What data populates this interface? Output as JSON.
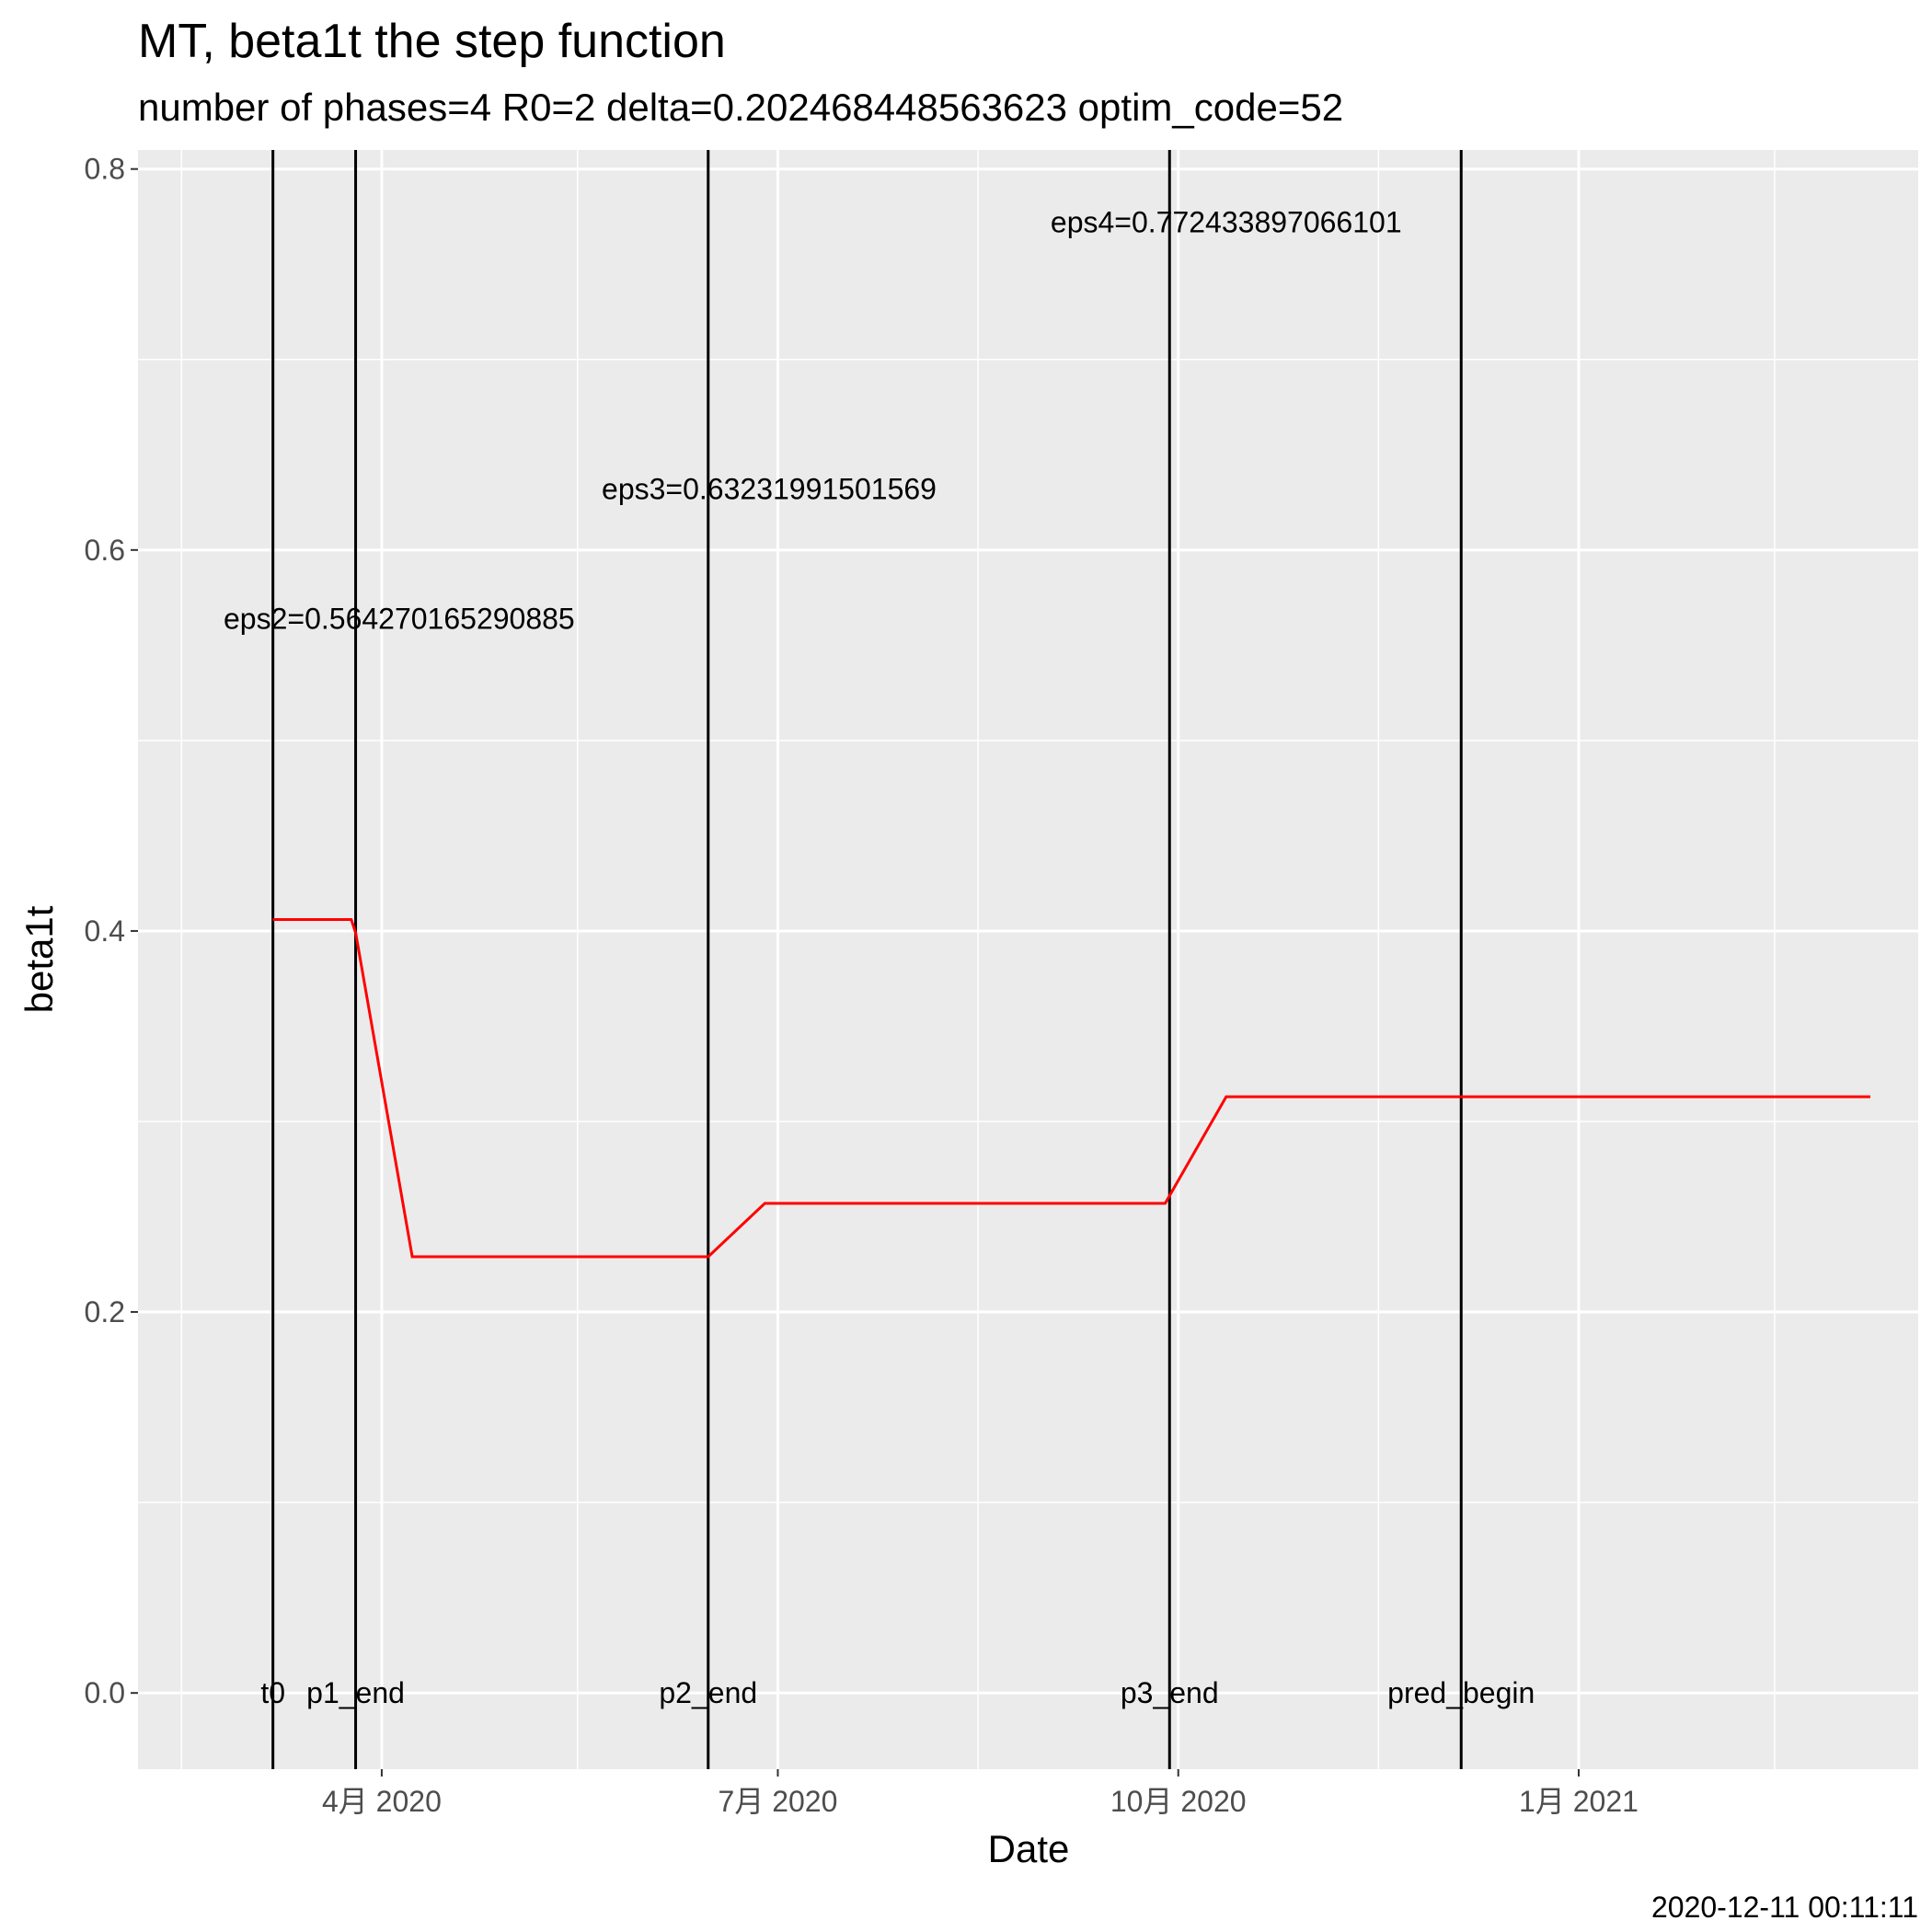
{
  "chart_data": {
    "type": "line",
    "title": "MT, beta1t the step function",
    "subtitle": "number of phases=4   R0=2   delta=0.202468448563623   optim_code=52",
    "xlabel": "Date",
    "ylabel": "beta1t",
    "caption": "2020-12-11 00:11:11",
    "xlim": [
      "2020-02-05",
      "2021-03-20"
    ],
    "ylim": [
      -0.04,
      0.81
    ],
    "x_ticks": [
      {
        "date": "2020-04-01",
        "label": "4月 2020"
      },
      {
        "date": "2020-07-01",
        "label": "7月 2020"
      },
      {
        "date": "2020-10-01",
        "label": "10月 2020"
      },
      {
        "date": "2021-01-01",
        "label": "1月 2021"
      }
    ],
    "x_minor_ticks": [
      "2020-02-15",
      "2020-05-16",
      "2020-08-16",
      "2020-11-16",
      "2021-02-15"
    ],
    "y_ticks": [
      0.0,
      0.2,
      0.4,
      0.6,
      0.8
    ],
    "y_tick_labels": [
      "0.0",
      "0.2",
      "0.4",
      "0.6",
      "0.8"
    ],
    "grid": true,
    "line_color": "#ff0000",
    "series": [
      {
        "x": [
          "2020-03-07",
          "2020-03-25",
          "2020-03-26",
          "2020-04-08",
          "2020-06-15",
          "2020-06-28",
          "2020-09-28",
          "2020-10-12",
          "2021-03-09"
        ],
        "y": [
          0.406,
          0.406,
          0.399,
          0.229,
          0.229,
          0.257,
          0.257,
          0.313,
          0.313
        ]
      }
    ],
    "vlines": [
      {
        "date": "2020-03-07",
        "label": "t0"
      },
      {
        "date": "2020-03-26",
        "label": "p1_end"
      },
      {
        "date": "2020-06-15",
        "label": "p2_end"
      },
      {
        "date": "2020-09-29",
        "label": "p3_end"
      },
      {
        "date": "2020-12-05",
        "label": "pred_begin"
      }
    ],
    "annotations": [
      {
        "date": "2020-04-05",
        "y": 0.564,
        "text": "eps2=0.564270165290885"
      },
      {
        "date": "2020-06-29",
        "y": 0.632,
        "text": "eps3=0.63231991501569"
      },
      {
        "date": "2020-10-12",
        "y": 0.772,
        "text": "eps4=0.772433897066101"
      }
    ]
  }
}
